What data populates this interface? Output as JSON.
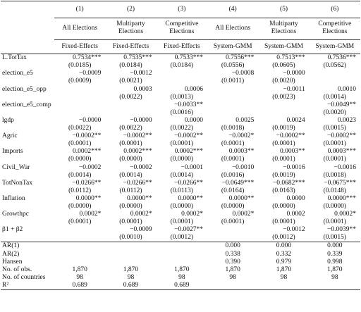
{
  "table": {
    "header": {
      "numbers": [
        "(1)",
        "(2)",
        "(3)",
        "(4)",
        "(5)",
        "(6)"
      ],
      "samples": [
        "All Elections",
        "Multiparty Elections",
        "Competitive Elections",
        "All Elections",
        "Multiparty Elections",
        "Competitive Elections"
      ],
      "methods": [
        "Fixed-Effects",
        "Fixed-Effects",
        "Fixed-Effects",
        "System-GMM",
        "System-GMM",
        "System-GMM"
      ]
    },
    "rows": [
      {
        "label": "L.TotTax",
        "coef": [
          "0.7534***",
          "0.7535***",
          "0.7533***",
          "0.7556***",
          "0.7513***",
          "0.7536***"
        ],
        "se": [
          "(0.0185)",
          "(0.0184)",
          "(0.0184)",
          "(0.0556)",
          "(0.0605)",
          "(0.0562)"
        ]
      },
      {
        "label": "election_e5",
        "coef": [
          "−0.0009",
          "−0.0012",
          null,
          "−0.0008",
          "−0.0000",
          null
        ],
        "se": [
          "(0.0009)",
          "(0.0021)",
          null,
          "(0.0011)",
          "(0.0020)",
          null
        ]
      },
      {
        "label": "election_e5_opp",
        "coef": [
          null,
          "0.0003",
          "0.0006",
          null,
          "−0.0011",
          "0.0010"
        ],
        "se": [
          null,
          "(0.0022)",
          "(0.0013)",
          null,
          "(0.0023)",
          "(0.0014)"
        ]
      },
      {
        "label": "election_e5_comp",
        "coef": [
          null,
          null,
          "−0.0033**",
          null,
          null,
          "−0.0049**"
        ],
        "se": [
          null,
          null,
          "(0.0016)",
          null,
          null,
          "(0.0020)"
        ]
      },
      {
        "label": "lgdp",
        "coef": [
          "−0.0000",
          "−0.0000",
          "0.0000",
          "0.0025",
          "0.0024",
          "0.0023"
        ],
        "se": [
          "(0.0022)",
          "(0.0022)",
          "(0.0022)",
          "(0.0018)",
          "(0.0019)",
          "(0.0015)"
        ]
      },
      {
        "label": "Agric",
        "coef": [
          "−0.0002**",
          "−0.0002**",
          "−0.0002**",
          "−0.0002*",
          "−0.0002**",
          "−0.0002**"
        ],
        "se": [
          "(0.0001)",
          "(0.0001)",
          "(0.0001)",
          "(0.0001)",
          "(0.0001)",
          "(0.0001)"
        ]
      },
      {
        "label": "Imports",
        "coef": [
          "0.0002***",
          "0.0002***",
          "0.0002***",
          "0.0003**",
          "0.0003**",
          "0.0003***"
        ],
        "se": [
          "(0.0000)",
          "(0.0000)",
          "(0.0000)",
          "(0.0001)",
          "(0.0001)",
          "(0.0001)"
        ]
      },
      {
        "label": "Civil_War",
        "coef": [
          "−0.0002",
          "−0.0002",
          "−0.0001",
          "−0.0010",
          "−0.0016",
          "−0.0016"
        ],
        "se": [
          "(0.0014)",
          "(0.0014)",
          "(0.0014)",
          "(0.0016)",
          "(0.0019)",
          "(0.0018)"
        ]
      },
      {
        "label": "TotNonTax",
        "coef": [
          "−0.0266**",
          "−0.0266**",
          "−0.0266**",
          "−0.0649***",
          "−0.0682***",
          "−0.0675***"
        ],
        "se": [
          "(0.0112)",
          "(0.0112)",
          "(0.0113)",
          "(0.0164)",
          "(0.0163)",
          "(0.0148)"
        ]
      },
      {
        "label": "Inflation",
        "coef": [
          "0.0000**",
          "0.0000**",
          "0.0000**",
          "0.0000**",
          "0.0000",
          "0.0000***"
        ],
        "se": [
          "(0.0000)",
          "(0.0000)",
          "(0.0000)",
          "(0.0000)",
          "(0.0000)",
          "(0.0000)"
        ]
      },
      {
        "label": "Growthpc",
        "coef": [
          "0.0002*",
          "0.0002*",
          "0.0002*",
          "0.0002*",
          "0.0002",
          "0.0002*"
        ],
        "se": [
          "(0.0001)",
          "(0.0001)",
          "(0.0001)",
          "(0.0001)",
          "(0.0001)",
          "(0.0001)"
        ]
      },
      {
        "label": "β1 + β2",
        "coef": [
          null,
          "−0.0009",
          "−0.0027**",
          null,
          "−0.0012",
          "−0.0039**"
        ],
        "se": [
          null,
          "(0.0010)",
          "(0.0012)",
          null,
          "(0.0012)",
          "(0.0015)"
        ]
      }
    ],
    "stats": [
      {
        "label": "AR(1)",
        "values": [
          null,
          null,
          null,
          "0.000",
          "0.000",
          "0.000"
        ]
      },
      {
        "label": "AR(2)",
        "values": [
          null,
          null,
          null,
          "0.338",
          "0.332",
          "0.339"
        ]
      },
      {
        "label": "Hansen",
        "values": [
          null,
          null,
          null,
          "0.390",
          "0.979",
          "0.998"
        ]
      },
      {
        "label": "No. of obs.",
        "values": [
          "1,870",
          "1,870",
          "1,870",
          "1,870",
          "1,870",
          "1,870"
        ]
      },
      {
        "label": "No. of countries",
        "values": [
          "98",
          "98",
          "98",
          "98",
          "98",
          "98"
        ]
      },
      {
        "label": "R²",
        "values": [
          "0.689",
          "0.689",
          "0.689",
          null,
          null,
          null
        ]
      }
    ]
  }
}
